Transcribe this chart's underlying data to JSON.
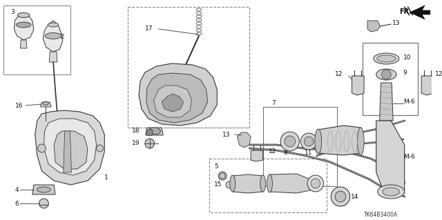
{
  "bg_color": "#f0f0f0",
  "line_color": "#333333",
  "diagram_code": "TK64B3400A",
  "fig_width": 6.4,
  "fig_height": 3.19,
  "font_size": 6.5,
  "label_color": "#111111"
}
